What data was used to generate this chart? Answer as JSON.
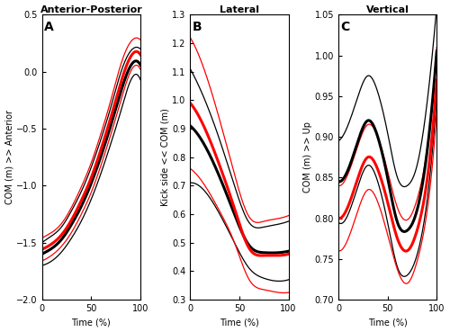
{
  "fig_width": 5.0,
  "fig_height": 3.69,
  "dpi": 100,
  "panel_labels": [
    "A",
    "B",
    "C"
  ],
  "titles": [
    "Anterior-Posterior",
    "Lateral",
    "Vertical"
  ],
  "xlabels": [
    "Time (%)",
    "Time (%)",
    "Time (%)"
  ],
  "ylabels": [
    "COM (m) >> Anterior",
    "Kick side << COM (m)",
    "COM (m) >> Up"
  ],
  "A": {
    "ylim": [
      -2.0,
      0.5
    ],
    "yticks": [
      -2.0,
      -1.5,
      -1.0,
      -0.5,
      0.0,
      0.5
    ],
    "black_mean_x": [
      0,
      10,
      20,
      30,
      40,
      50,
      60,
      70,
      80,
      90,
      100
    ],
    "black_mean_y": [
      -1.6,
      -1.55,
      -1.47,
      -1.34,
      -1.18,
      -0.98,
      -0.74,
      -0.47,
      -0.18,
      0.05,
      0.06
    ],
    "black_sd_upper_x": [
      0,
      10,
      20,
      30,
      40,
      50,
      60,
      70,
      80,
      90,
      100
    ],
    "black_sd_upper_y": [
      -1.5,
      -1.44,
      -1.36,
      -1.22,
      -1.05,
      -0.84,
      -0.59,
      -0.31,
      -0.01,
      0.18,
      0.2
    ],
    "black_sd_lower_x": [
      0,
      10,
      20,
      30,
      40,
      50,
      60,
      70,
      80,
      90,
      100
    ],
    "black_sd_lower_y": [
      -1.7,
      -1.66,
      -1.58,
      -1.46,
      -1.31,
      -1.12,
      -0.89,
      -0.63,
      -0.35,
      -0.08,
      -0.07
    ],
    "red_mean_x": [
      0,
      10,
      20,
      30,
      40,
      50,
      60,
      70,
      80,
      90,
      100
    ],
    "red_mean_y": [
      -1.56,
      -1.51,
      -1.43,
      -1.3,
      -1.13,
      -0.93,
      -0.68,
      -0.4,
      -0.1,
      0.13,
      0.15
    ],
    "red_sd_upper_x": [
      0,
      10,
      20,
      30,
      40,
      50,
      60,
      70,
      80,
      90,
      100
    ],
    "red_sd_upper_y": [
      -1.46,
      -1.41,
      -1.33,
      -1.19,
      -1.01,
      -0.8,
      -0.54,
      -0.25,
      0.06,
      0.26,
      0.28
    ],
    "red_sd_lower_x": [
      0,
      10,
      20,
      30,
      40,
      50,
      60,
      70,
      80,
      90,
      100
    ],
    "red_sd_lower_y": [
      -1.66,
      -1.61,
      -1.53,
      -1.41,
      -1.25,
      -1.06,
      -0.82,
      -0.55,
      -0.26,
      0.0,
      0.02
    ]
  },
  "B": {
    "ylim": [
      0.3,
      1.3
    ],
    "yticks": [
      0.3,
      0.4,
      0.5,
      0.6,
      0.7,
      0.8,
      0.9,
      1.0,
      1.1,
      1.2,
      1.3
    ],
    "black_mean_x": [
      0,
      15,
      30,
      45,
      60,
      75,
      90,
      100
    ],
    "black_mean_y": [
      0.91,
      0.84,
      0.73,
      0.6,
      0.49,
      0.465,
      0.465,
      0.47
    ],
    "black_sd_upper_x": [
      0,
      15,
      30,
      45,
      60,
      75,
      90,
      100
    ],
    "black_sd_upper_y": [
      1.11,
      1.0,
      0.86,
      0.7,
      0.57,
      0.555,
      0.565,
      0.575
    ],
    "black_sd_lower_x": [
      0,
      15,
      30,
      45,
      60,
      75,
      90,
      100
    ],
    "black_sd_lower_y": [
      0.71,
      0.68,
      0.6,
      0.5,
      0.41,
      0.375,
      0.365,
      0.37
    ],
    "red_mean_x": [
      0,
      15,
      30,
      45,
      60,
      75,
      90,
      100
    ],
    "red_mean_y": [
      0.99,
      0.9,
      0.77,
      0.62,
      0.48,
      0.455,
      0.455,
      0.46
    ],
    "red_sd_upper_x": [
      0,
      15,
      30,
      45,
      60,
      75,
      90,
      100
    ],
    "red_sd_upper_y": [
      1.22,
      1.1,
      0.93,
      0.74,
      0.59,
      0.575,
      0.585,
      0.595
    ],
    "red_sd_lower_x": [
      0,
      15,
      30,
      45,
      60,
      75,
      90,
      100
    ],
    "red_sd_lower_y": [
      0.76,
      0.7,
      0.61,
      0.5,
      0.37,
      0.335,
      0.325,
      0.325
    ]
  },
  "C": {
    "ylim": [
      0.7,
      1.05
    ],
    "yticks": [
      0.7,
      0.75,
      0.8,
      0.85,
      0.9,
      0.95,
      1.0,
      1.05
    ],
    "black_mean_x": [
      0,
      10,
      20,
      30,
      40,
      50,
      60,
      70,
      80,
      90,
      100
    ],
    "black_mean_y": [
      0.845,
      0.86,
      0.895,
      0.92,
      0.9,
      0.85,
      0.795,
      0.785,
      0.81,
      0.88,
      1.005
    ],
    "black_sd_upper_x": [
      0,
      10,
      20,
      30,
      40,
      50,
      60,
      70,
      80,
      90,
      100
    ],
    "black_sd_upper_y": [
      0.895,
      0.915,
      0.95,
      0.975,
      0.955,
      0.905,
      0.85,
      0.84,
      0.865,
      0.94,
      1.06
    ],
    "black_sd_lower_x": [
      0,
      10,
      20,
      30,
      40,
      50,
      60,
      70,
      80,
      90,
      100
    ],
    "black_sd_lower_y": [
      0.795,
      0.805,
      0.84,
      0.865,
      0.845,
      0.795,
      0.74,
      0.73,
      0.755,
      0.82,
      0.95
    ],
    "red_mean_x": [
      0,
      10,
      20,
      30,
      40,
      50,
      60,
      70,
      80,
      90,
      100
    ],
    "red_mean_y": [
      0.8,
      0.815,
      0.85,
      0.875,
      0.86,
      0.82,
      0.775,
      0.76,
      0.785,
      0.845,
      0.97
    ],
    "red_sd_upper_x": [
      0,
      10,
      20,
      30,
      40,
      50,
      60,
      70,
      80,
      90,
      100
    ],
    "red_sd_upper_y": [
      0.84,
      0.855,
      0.89,
      0.915,
      0.9,
      0.858,
      0.813,
      0.798,
      0.823,
      0.883,
      1.01
    ],
    "red_sd_lower_x": [
      0,
      10,
      20,
      30,
      40,
      50,
      60,
      70,
      80,
      90,
      100
    ],
    "red_sd_lower_y": [
      0.76,
      0.775,
      0.81,
      0.835,
      0.82,
      0.78,
      0.737,
      0.72,
      0.747,
      0.807,
      0.93
    ]
  },
  "black_color": "#000000",
  "red_color": "#ff0000",
  "mean_lw": 2.2,
  "sd_lw": 0.9,
  "xticks": [
    0,
    50,
    100
  ],
  "tick_fontsize": 7,
  "title_fontsize": 8,
  "label_fontsize": 7,
  "panel_label_fontsize": 10
}
